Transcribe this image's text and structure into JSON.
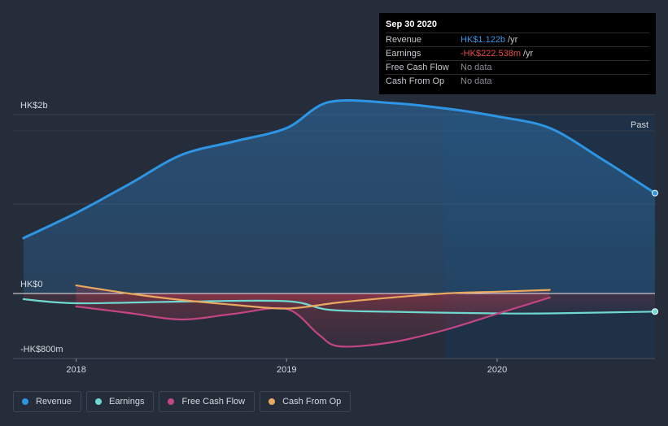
{
  "tooltip": {
    "date": "Sep 30 2020",
    "rows": [
      {
        "label": "Revenue",
        "value": "HK$1.122b",
        "unit": "/yr",
        "color": "#2d95e3"
      },
      {
        "label": "Earnings",
        "value": "-HK$222.538m",
        "unit": "/yr",
        "color": "#e84a4a"
      },
      {
        "label": "Free Cash Flow",
        "value": "No data",
        "unit": "",
        "color": ""
      },
      {
        "label": "Cash From Op",
        "value": "No data",
        "unit": "",
        "color": ""
      }
    ]
  },
  "past_label": "Past",
  "legend": [
    {
      "label": "Revenue",
      "color": "#2d95e3"
    },
    {
      "label": "Earnings",
      "color": "#6fd8d0"
    },
    {
      "label": "Free Cash Flow",
      "color": "#c44583"
    },
    {
      "label": "Cash From Op",
      "color": "#e8a85e"
    }
  ],
  "chart_data": {
    "type": "line",
    "title": "",
    "unit": "HK$ millions",
    "ylim": [
      -800,
      2000
    ],
    "xlim": [
      2017.7,
      2020.75
    ],
    "y_tick_labels": [
      {
        "value": 2000,
        "label": "HK$2b"
      },
      {
        "value": 0,
        "label": "HK$0"
      },
      {
        "value": -800,
        "label": "-HK$800m"
      }
    ],
    "x_ticks": [
      {
        "value": 2018.0,
        "label": "2018"
      },
      {
        "value": 2019.0,
        "label": "2019"
      },
      {
        "value": 2020.0,
        "label": "2020"
      }
    ],
    "past_region_start": 2019.75,
    "series": [
      {
        "name": "Revenue",
        "color": "#2d95e3",
        "x": [
          2017.75,
          2018.0,
          2018.25,
          2018.5,
          2018.75,
          2019.0,
          2019.2,
          2019.5,
          2019.75,
          2020.0,
          2020.25,
          2020.5,
          2020.75
        ],
        "y": [
          620,
          900,
          1220,
          1550,
          1700,
          1850,
          2140,
          2130,
          2070,
          1980,
          1850,
          1500,
          1122
        ]
      },
      {
        "name": "Earnings",
        "color": "#6fd8d0",
        "x": [
          2017.75,
          2018.0,
          2018.5,
          2019.0,
          2019.2,
          2019.5,
          2020.0,
          2020.25,
          2020.75
        ],
        "y": [
          -70,
          -120,
          -100,
          -95,
          -200,
          -225,
          -245,
          -245,
          -222.538
        ]
      },
      {
        "name": "Free Cash Flow",
        "color": "#c44583",
        "x": [
          2018.0,
          2018.25,
          2018.5,
          2018.75,
          2019.0,
          2019.15,
          2019.25,
          2019.5,
          2019.75,
          2020.0,
          2020.25
        ],
        "y": [
          -160,
          -240,
          -320,
          -250,
          -190,
          -500,
          -650,
          -600,
          -450,
          -250,
          -50
        ]
      },
      {
        "name": "Cash From Op",
        "color": "#e8a85e",
        "x": [
          2018.0,
          2018.25,
          2018.5,
          2018.75,
          2019.0,
          2019.25,
          2019.5,
          2019.75,
          2020.0,
          2020.25
        ],
        "y": [
          90,
          0,
          -80,
          -140,
          -185,
          -110,
          -50,
          0,
          20,
          40
        ]
      }
    ]
  }
}
